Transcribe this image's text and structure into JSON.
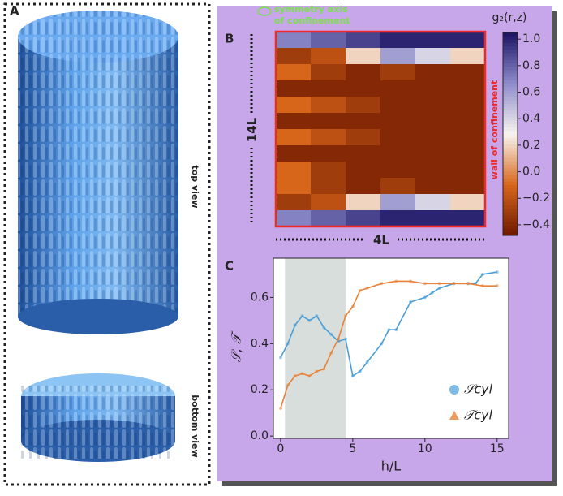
{
  "panel_a": {
    "label": "A",
    "top_label": "top view",
    "bottom_label": "bottom view"
  },
  "panel_b": {
    "label": "B",
    "axis_label": [
      "symmetry axis",
      "of confinement"
    ],
    "wall_label": "wall of confinement",
    "height_label": "14L",
    "width_label": "4L"
  },
  "panel_c": {
    "label": "C"
  },
  "chart_data": [
    {
      "type": "heatmap",
      "title": "g₂(r,z)",
      "values": [
        [
          0.7,
          0.8,
          0.9,
          1.0,
          1.0,
          1.0
        ],
        [
          -0.3,
          -0.2,
          0.2,
          0.6,
          0.4,
          0.2
        ],
        [
          -0.1,
          -0.3,
          -0.4,
          -0.3,
          -0.4,
          -0.4
        ],
        [
          -0.4,
          -0.4,
          -0.4,
          -0.4,
          -0.4,
          -0.4
        ],
        [
          -0.1,
          -0.2,
          -0.3,
          -0.4,
          -0.4,
          -0.4
        ],
        [
          -0.4,
          -0.4,
          -0.4,
          -0.4,
          -0.4,
          -0.4
        ],
        [
          -0.1,
          -0.2,
          -0.3,
          -0.4,
          -0.4,
          -0.4
        ],
        [
          -0.4,
          -0.4,
          -0.4,
          -0.4,
          -0.4,
          -0.4
        ],
        [
          -0.1,
          -0.3,
          -0.4,
          -0.4,
          -0.4,
          -0.4
        ],
        [
          -0.1,
          -0.3,
          -0.4,
          -0.3,
          -0.4,
          -0.4
        ],
        [
          -0.3,
          -0.2,
          0.2,
          0.6,
          0.4,
          0.2
        ],
        [
          0.7,
          0.8,
          0.9,
          1.0,
          1.0,
          1.0
        ]
      ],
      "clim": [
        -0.48,
        1.05
      ],
      "colormap": [
        "#6e1800",
        "#d8661a",
        "#f7f4f0",
        "#8e8ccc",
        "#1b1463"
      ],
      "cticks": [
        {
          "value": 1.0,
          "label": "1.0"
        },
        {
          "value": 0.8,
          "label": "0.8"
        },
        {
          "value": 0.6,
          "label": "0.6"
        },
        {
          "value": 0.4,
          "label": "0.4"
        },
        {
          "value": 0.2,
          "label": "0.2"
        },
        {
          "value": 0.0,
          "label": "0.0"
        },
        {
          "value": -0.2,
          "label": "−0.2"
        },
        {
          "value": -0.4,
          "label": "−0.4"
        }
      ]
    },
    {
      "type": "line",
      "x_label": "h/L",
      "y_label": "𝒮, 𝒯",
      "xlim": [
        -0.5,
        15.8
      ],
      "ylim": [
        -0.01,
        0.77
      ],
      "xticks": [
        0,
        5,
        10,
        15
      ],
      "yticks": [
        {
          "value": 0.0,
          "label": "0.0"
        },
        {
          "value": 0.2,
          "label": "0.2"
        },
        {
          "value": 0.4,
          "label": "0.4"
        },
        {
          "value": 0.6,
          "label": "0.6"
        }
      ],
      "shaded_x": [
        0.3,
        4.5
      ],
      "shade_color": "#c8d0cc",
      "series": [
        {
          "name": "𝒮cyl",
          "color": "#4a9ed8",
          "marker": "circle",
          "x": [
            0,
            0.5,
            1,
            1.5,
            2,
            2.5,
            3,
            3.5,
            4,
            4.5,
            5,
            5.5,
            6,
            7,
            7.5,
            8,
            9,
            10,
            10.5,
            11,
            12,
            13,
            13.5,
            14,
            15
          ],
          "values": [
            0.34,
            0.4,
            0.48,
            0.52,
            0.5,
            0.52,
            0.47,
            0.44,
            0.41,
            0.42,
            0.26,
            0.28,
            0.32,
            0.4,
            0.46,
            0.46,
            0.58,
            0.6,
            0.62,
            0.64,
            0.66,
            0.66,
            0.66,
            0.7,
            0.71
          ]
        },
        {
          "name": "𝒯cyl",
          "color": "#e8823a",
          "marker": "triangle",
          "x": [
            0,
            0.5,
            1,
            1.5,
            2,
            2.5,
            3,
            3.5,
            4,
            4.5,
            5,
            5.5,
            6,
            7,
            8,
            9,
            10,
            11,
            12,
            13,
            14,
            15
          ],
          "values": [
            0.12,
            0.22,
            0.26,
            0.27,
            0.26,
            0.28,
            0.29,
            0.36,
            0.42,
            0.52,
            0.56,
            0.63,
            0.64,
            0.66,
            0.67,
            0.67,
            0.66,
            0.66,
            0.66,
            0.66,
            0.65,
            0.65
          ]
        }
      ]
    }
  ]
}
